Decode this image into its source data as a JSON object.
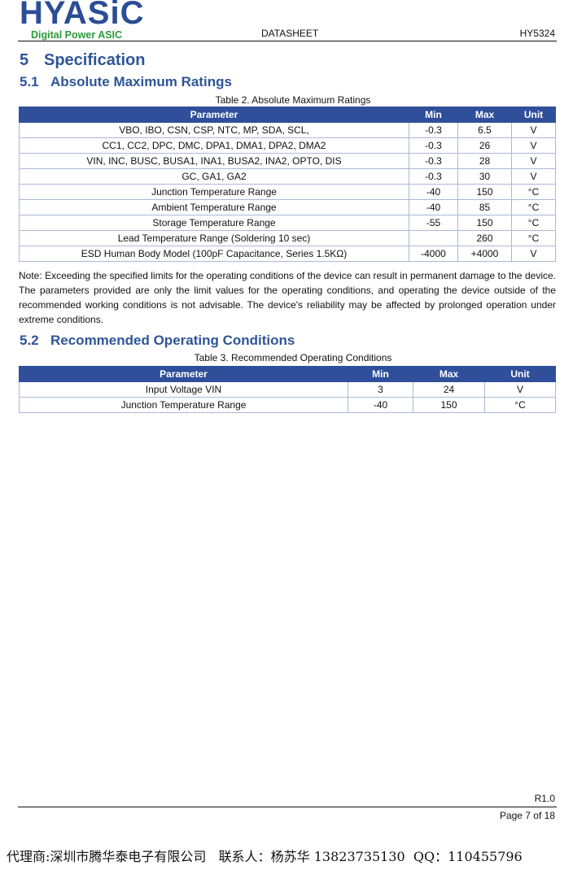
{
  "header": {
    "logo": "HYASiC",
    "logo_tagline": "Digital Power ASIC",
    "doc_type": "DATASHEET",
    "part": "HY5324"
  },
  "section": {
    "num": "5",
    "title": "Specification"
  },
  "sub1": {
    "num": "5.1",
    "title": "Absolute Maximum Ratings"
  },
  "table1": {
    "caption": "Table 2. Absolute Maximum Ratings",
    "headers": [
      "Parameter",
      "Min",
      "Max",
      "Unit"
    ],
    "rows": [
      [
        "VBO, IBO, CSN, CSP, NTC, MP, SDA, SCL,",
        "-0.3",
        "6.5",
        "V"
      ],
      [
        "CC1, CC2, DPC, DMC, DPA1, DMA1, DPA2, DMA2",
        "-0.3",
        "26",
        "V"
      ],
      [
        "VIN, INC, BUSC, BUSA1, INA1, BUSA2, INA2, OPTO, DIS",
        "-0.3",
        "28",
        "V"
      ],
      [
        "GC, GA1, GA2",
        "-0.3",
        "30",
        "V"
      ],
      [
        "Junction Temperature Range",
        "-40",
        "150",
        "°C"
      ],
      [
        "Ambient Temperature Range",
        "-40",
        "85",
        "°C"
      ],
      [
        "Storage Temperature Range",
        "-55",
        "150",
        "°C"
      ],
      [
        "Lead Temperature Range (Soldering 10 sec)",
        "",
        "260",
        "°C"
      ],
      [
        "ESD Human Body Model (100pF Capacitance, Series 1.5KΩ)",
        "-4000",
        "+4000",
        "V"
      ]
    ]
  },
  "note": "Note: Exceeding the specified limits for the operating conditions of the device can result in permanent damage to the device. The parameters provided are only the limit values for the operating conditions, and operating the device outside of the recommended working conditions is not advisable. The device's reliability may be affected by prolonged operation under extreme conditions.",
  "sub2": {
    "num": "5.2",
    "title": "Recommended Operating Conditions"
  },
  "table2": {
    "caption": "Table 3. Recommended Operating Conditions",
    "headers": [
      "Parameter",
      "Min",
      "Max",
      "Unit"
    ],
    "rows": [
      [
        "Input Voltage VIN",
        "3",
        "24",
        "V"
      ],
      [
        "Junction Temperature Range",
        "-40",
        "150",
        "°C"
      ]
    ]
  },
  "footer": {
    "revision": "R1.0",
    "page": "Page 7 of 18"
  },
  "agent_line": "代理商:深圳市腾华泰电子有限公司   联系人：杨苏华 13823735130  QQ：110455796"
}
